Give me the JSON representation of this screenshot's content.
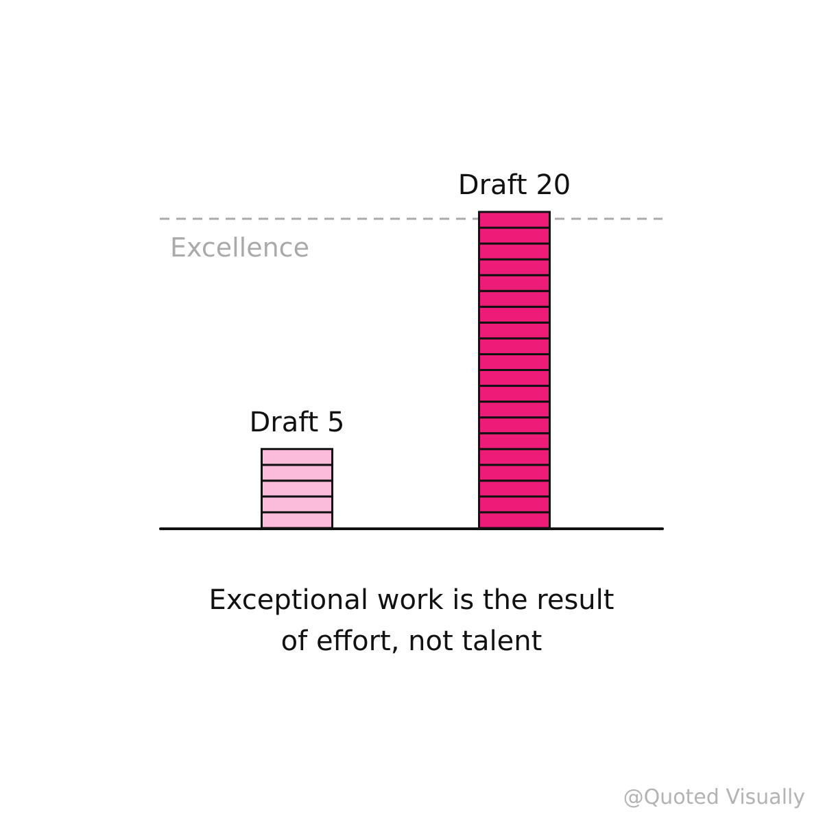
{
  "chart_data": {
    "type": "bar",
    "categories": [
      "Draft 5",
      "Draft 20"
    ],
    "values": [
      5,
      20
    ],
    "colors": [
      "#fbbcdb",
      "#ec1c78"
    ],
    "reference_line": {
      "label": "Excellence",
      "value": 20,
      "style": "dashed",
      "color": "#aaaaaa"
    },
    "ylim": [
      0,
      20
    ]
  },
  "caption": {
    "line1": "Exceptional work is the result",
    "line2": "of effort, not talent"
  },
  "credit": "@Quoted Visually"
}
